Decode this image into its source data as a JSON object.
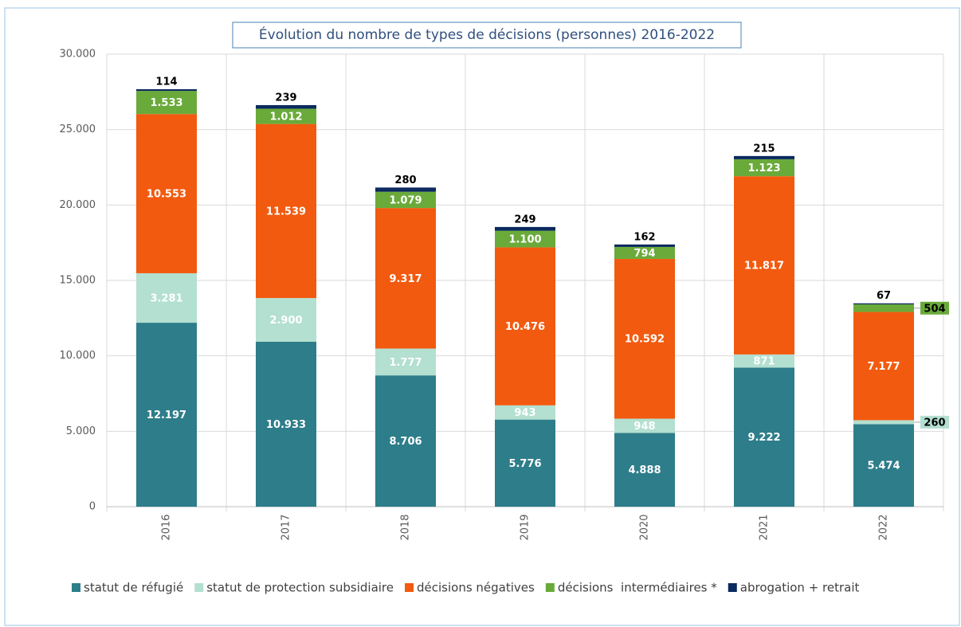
{
  "chart_data": {
    "type": "stacked-bar",
    "title": "Évolution du nombre de types de décisions (personnes) 2016-2022",
    "categories": [
      "2016",
      "2017",
      "2018",
      "2019",
      "2020",
      "2021",
      "2022"
    ],
    "series": [
      {
        "name": "statut de réfugié",
        "color": "#2e7d8a",
        "values": [
          12197,
          10933,
          8706,
          5776,
          4888,
          9222,
          5474
        ],
        "value_labels": [
          "12.197",
          "10.933",
          "8.706",
          "5.776",
          "4.888",
          "9.222",
          "5.474"
        ]
      },
      {
        "name": "statut de protection subsidiaire",
        "color": "#b3e0d0",
        "values": [
          3281,
          2900,
          1777,
          943,
          948,
          871,
          260
        ],
        "value_labels": [
          "3.281",
          "2.900",
          "1.777",
          "943",
          "948",
          "871",
          "260"
        ]
      },
      {
        "name": "décisions négatives",
        "color": "#f25a0f",
        "values": [
          10553,
          11539,
          9317,
          10476,
          10592,
          11817,
          7177
        ],
        "value_labels": [
          "10.553",
          "11.539",
          "9.317",
          "10.476",
          "10.592",
          "11.817",
          "7.177"
        ]
      },
      {
        "name": "décisions  intermédiaires *",
        "color": "#6aaa3a",
        "values": [
          1533,
          1012,
          1079,
          1100,
          794,
          1123,
          504
        ],
        "value_labels": [
          "1.533",
          "1.012",
          "1.079",
          "1.100",
          "794",
          "1.123",
          "504"
        ]
      },
      {
        "name": "abrogation + retrait",
        "color": "#0b2a5e",
        "values": [
          114,
          239,
          280,
          249,
          162,
          215,
          67
        ]
      }
    ],
    "ylim": [
      0,
      30000
    ],
    "yticks": [
      0,
      {
        "value": 5000,
        "label": "5.000"
      },
      {
        "value": 10000,
        "label": "10.000"
      },
      {
        "value": 15000,
        "label": "15.000"
      },
      {
        "value": 20000,
        "label": "20.000"
      },
      {
        "value": 25000,
        "label": "25.000"
      },
      {
        "value": 30000,
        "label": "30.000"
      }
    ],
    "grid": true
  }
}
